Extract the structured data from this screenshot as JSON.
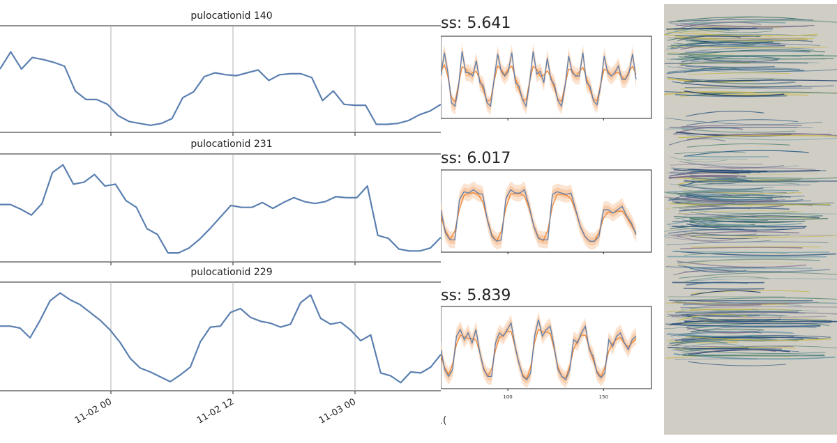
{
  "left_figure": {
    "panels": [
      {
        "title": "pulocationid 140",
        "values": [
          0.62,
          0.8,
          0.62,
          0.74,
          0.72,
          0.69,
          0.65,
          0.39,
          0.3,
          0.3,
          0.25,
          0.13,
          0.07,
          0.05,
          0.03,
          0.05,
          0.1,
          0.32,
          0.38,
          0.54,
          0.58,
          0.56,
          0.55,
          0.58,
          0.61,
          0.5,
          0.56,
          0.57,
          0.57,
          0.53,
          0.29,
          0.39,
          0.25,
          0.24,
          0.24,
          0.04,
          0.04,
          0.05,
          0.08,
          0.14,
          0.18,
          0.25
        ]
      },
      {
        "title": "pulocationid 231",
        "values": [
          0.55,
          0.55,
          0.5,
          0.44,
          0.56,
          0.88,
          0.96,
          0.76,
          0.78,
          0.86,
          0.74,
          0.76,
          0.59,
          0.52,
          0.3,
          0.24,
          0.05,
          0.05,
          0.1,
          0.19,
          0.3,
          0.42,
          0.54,
          0.52,
          0.52,
          0.57,
          0.51,
          0.57,
          0.62,
          0.58,
          0.56,
          0.58,
          0.63,
          0.62,
          0.62,
          0.74,
          0.23,
          0.2,
          0.09,
          0.07,
          0.07,
          0.1,
          0.21
        ]
      },
      {
        "title": "pulocationid 229",
        "values": [
          0.62,
          0.62,
          0.6,
          0.5,
          0.68,
          0.88,
          0.96,
          0.89,
          0.84,
          0.76,
          0.68,
          0.58,
          0.45,
          0.29,
          0.19,
          0.15,
          0.1,
          0.05,
          0.12,
          0.2,
          0.46,
          0.61,
          0.62,
          0.76,
          0.8,
          0.71,
          0.67,
          0.65,
          0.61,
          0.64,
          0.86,
          0.94,
          0.7,
          0.64,
          0.66,
          0.58,
          0.47,
          0.53,
          0.14,
          0.11,
          0.04,
          0.15,
          0.14,
          0.2,
          0.33
        ]
      }
    ],
    "x_ticks": [
      "11-02 00",
      "11-02 12",
      "11-03 00"
    ],
    "x_tick_partial": "1("
  },
  "middle_figure": {
    "panels": [
      {
        "label": "ss: 5.641",
        "actual": [
          0.55,
          0.9,
          0.6,
          0.15,
          0.1,
          0.4,
          0.92,
          0.6,
          0.6,
          0.55,
          0.78,
          0.45,
          0.4,
          0.15,
          0.1,
          0.5,
          0.88,
          0.62,
          0.55,
          0.62,
          0.9,
          0.45,
          0.4,
          0.2,
          0.1,
          0.45,
          0.92,
          0.58,
          0.62,
          0.45,
          0.82,
          0.5,
          0.42,
          0.18,
          0.1,
          0.4,
          0.85,
          0.6,
          0.55,
          0.55,
          0.9,
          0.45,
          0.4,
          0.18,
          0.12,
          0.4,
          0.85,
          0.6,
          0.55,
          0.6,
          0.7,
          0.5,
          0.5,
          0.6,
          0.88,
          0.5
        ]
      },
      {
        "label": "ss: 6.017",
        "actual": [
          0.55,
          0.2,
          0.1,
          0.1,
          0.7,
          0.82,
          0.8,
          0.85,
          0.8,
          0.78,
          0.4,
          0.15,
          0.08,
          0.1,
          0.72,
          0.85,
          0.8,
          0.8,
          0.85,
          0.6,
          0.3,
          0.12,
          0.1,
          0.1,
          0.78,
          0.82,
          0.8,
          0.78,
          0.8,
          0.55,
          0.3,
          0.15,
          0.08,
          0.08,
          0.15,
          0.55,
          0.55,
          0.5,
          0.55,
          0.6,
          0.45,
          0.35,
          0.18
        ]
      },
      {
        "label": "ss: 5.839",
        "actual": [
          0.5,
          0.2,
          0.1,
          0.2,
          0.7,
          0.8,
          0.65,
          0.75,
          0.6,
          0.8,
          0.45,
          0.2,
          0.1,
          0.1,
          0.6,
          0.75,
          0.7,
          0.8,
          0.9,
          0.55,
          0.3,
          0.1,
          0.05,
          0.15,
          0.7,
          0.95,
          0.7,
          0.8,
          0.85,
          0.55,
          0.2,
          0.1,
          0.05,
          0.2,
          0.65,
          0.6,
          0.75,
          0.85,
          0.5,
          0.4,
          0.15,
          0.08,
          0.15,
          0.65,
          0.55,
          0.7,
          0.75,
          0.6,
          0.5,
          0.65,
          0.7
        ]
      }
    ],
    "x_ticks": [
      100,
      150
    ],
    "x_range": [
      65,
      175
    ]
  },
  "colors": {
    "series_blue": "#5a7fb0",
    "forecast_orange": "#f0893a",
    "band_orange": "#f7c299",
    "grid": "#b0b0b0",
    "axis": "#222222"
  }
}
